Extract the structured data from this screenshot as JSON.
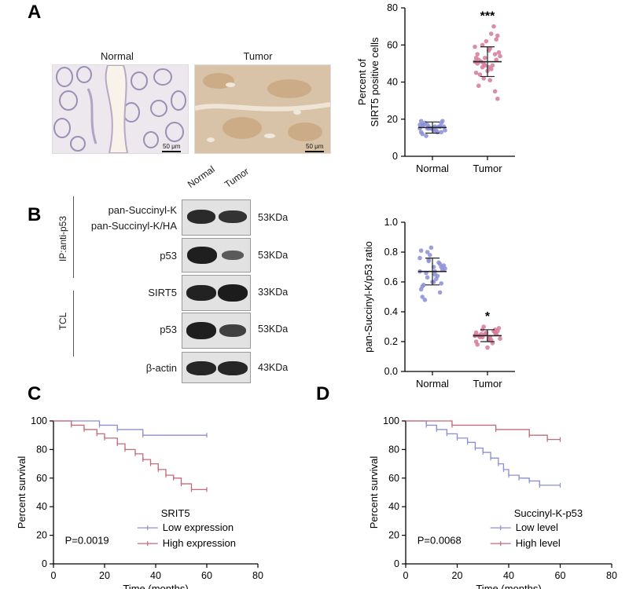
{
  "panels": {
    "A": "A",
    "B": "B",
    "C": "C",
    "D": "D"
  },
  "panelA": {
    "normal_label": "Normal",
    "tumor_label": "Tumor",
    "scale_bar": "50 μm"
  },
  "panelB": {
    "lanes": [
      "Normal",
      "Tumor"
    ],
    "groups": [
      "IP:anti-p53",
      "TCL"
    ],
    "rows": [
      {
        "label": "pan-Succinyl-K\npan-Succinyl-K/HA",
        "kda": "53KDa"
      },
      {
        "label": "p53",
        "kda": "53KDa"
      },
      {
        "label": "SIRT5",
        "kda": "33KDa"
      },
      {
        "label": "p53",
        "kda": "53KDa"
      },
      {
        "label": "β-actin",
        "kda": "43KDa"
      }
    ]
  },
  "colors": {
    "normal": "#8a8fd4",
    "tumor": "#d37a9a",
    "survival_low": "#8a8fd4",
    "survival_high": "#c46a78"
  },
  "chart_data": [
    {
      "type": "scatter",
      "panel": "A",
      "ylabel": "Percent of\nSIRT5 positive cells",
      "categories": [
        "Normal",
        "Tumor"
      ],
      "ylim": [
        0,
        80
      ],
      "yticks": [
        0,
        20,
        40,
        60,
        80
      ],
      "significance": "***",
      "series": [
        {
          "name": "Normal",
          "mean": 15.5,
          "sd": 3,
          "values": [
            15,
            16,
            14,
            17,
            13,
            18,
            15,
            16,
            12,
            19,
            14,
            15,
            17,
            16,
            13,
            15,
            18,
            14,
            16,
            15,
            11,
            17,
            16,
            14,
            15,
            19,
            13,
            16,
            15,
            17
          ]
        },
        {
          "name": "Tumor",
          "mean": 51,
          "sd": 8,
          "values": [
            51,
            55,
            48,
            60,
            45,
            52,
            58,
            42,
            50,
            65,
            47,
            53,
            38,
            56,
            49,
            62,
            44,
            54,
            70,
            46,
            51,
            59,
            35,
            57,
            48,
            53,
            63,
            41,
            50,
            55,
            31,
            66,
            49,
            52
          ]
        }
      ]
    },
    {
      "type": "scatter",
      "panel": "B",
      "ylabel": "pan-Succinyl-K/p53 ratio",
      "categories": [
        "Normal",
        "Tumor"
      ],
      "ylim": [
        0,
        1.0
      ],
      "yticks": [
        "0.0",
        "0.2",
        "0.4",
        "0.6",
        "0.8",
        "1.0"
      ],
      "significance": "*",
      "series": [
        {
          "name": "Normal",
          "mean": 0.67,
          "sd": 0.09,
          "values": [
            0.67,
            0.72,
            0.6,
            0.8,
            0.55,
            0.7,
            0.65,
            0.75,
            0.5,
            0.68,
            0.62,
            0.78,
            0.58,
            0.71,
            0.64,
            0.83,
            0.48,
            0.69,
            0.73,
            0.6,
            0.66,
            0.76,
            0.53,
            0.7,
            0.63,
            0.81,
            0.59,
            0.67,
            0.74,
            0.57
          ]
        },
        {
          "name": "Tumor",
          "mean": 0.24,
          "sd": 0.04,
          "values": [
            0.24,
            0.26,
            0.22,
            0.28,
            0.2,
            0.25,
            0.23,
            0.3,
            0.18,
            0.27,
            0.21,
            0.25,
            0.24,
            0.29,
            0.19,
            0.26,
            0.23,
            0.22,
            0.27,
            0.16,
            0.25,
            0.24,
            0.28,
            0.21,
            0.23,
            0.26
          ]
        }
      ]
    },
    {
      "type": "line",
      "panel": "C",
      "step": true,
      "xlabel": "Time (months)",
      "ylabel": "Percent survival",
      "xlim": [
        0,
        80
      ],
      "ylim": [
        0,
        100
      ],
      "xticks": [
        0,
        20,
        40,
        60,
        80
      ],
      "yticks": [
        0,
        20,
        40,
        60,
        80,
        100
      ],
      "legend_title": "SRIT5",
      "annotation": "P=0.0019",
      "series": [
        {
          "name": "Low expression",
          "x": [
            0,
            18,
            25,
            35,
            60
          ],
          "y": [
            100,
            97,
            94,
            90,
            90
          ]
        },
        {
          "name": "High expression",
          "x": [
            0,
            7,
            12,
            17,
            20,
            25,
            28,
            32,
            35,
            38,
            41,
            44,
            47,
            50,
            54,
            60
          ],
          "y": [
            100,
            97,
            94,
            91,
            88,
            84,
            80,
            77,
            73,
            70,
            66,
            62,
            60,
            56,
            52,
            52
          ]
        }
      ]
    },
    {
      "type": "line",
      "panel": "D",
      "step": true,
      "xlabel": "Time (months)",
      "ylabel": "Percent survival",
      "xlim": [
        0,
        80
      ],
      "ylim": [
        0,
        100
      ],
      "xticks": [
        0,
        20,
        40,
        60,
        80
      ],
      "yticks": [
        0,
        20,
        40,
        60,
        80,
        100
      ],
      "legend_title": "Succinyl-K-p53",
      "annotation": "P=0.0068",
      "series": [
        {
          "name": "Low level",
          "x": [
            0,
            8,
            12,
            16,
            20,
            24,
            27,
            30,
            33,
            36,
            38,
            40,
            44,
            48,
            52,
            60
          ],
          "y": [
            100,
            97,
            94,
            91,
            88,
            85,
            81,
            78,
            74,
            70,
            66,
            62,
            60,
            58,
            55,
            55
          ]
        },
        {
          "name": "High level",
          "x": [
            0,
            18,
            35,
            48,
            55,
            60
          ],
          "y": [
            100,
            97,
            94,
            90,
            87,
            87
          ]
        }
      ]
    }
  ]
}
